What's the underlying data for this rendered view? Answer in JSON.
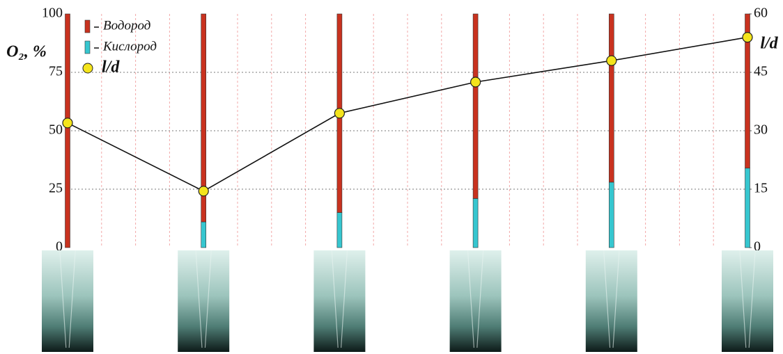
{
  "chart_data": {
    "type": "bar",
    "stacked": true,
    "categories": [
      null,
      null,
      null,
      null,
      null,
      null
    ],
    "series": [
      {
        "name": "Кислород",
        "color": "#36c6cf",
        "values": [
          0,
          11,
          15,
          21,
          28,
          34
        ]
      },
      {
        "name": "Водород",
        "color": "#c8321f",
        "values": [
          100,
          89,
          85,
          79,
          72,
          66
        ]
      },
      {
        "name": "l/d",
        "type": "line",
        "axis": "y2",
        "color": "#f4e41c",
        "values": [
          32,
          14.5,
          34.5,
          42.5,
          48,
          54
        ]
      }
    ],
    "y_label": "O₂, %",
    "y2_label": "l/d",
    "ylim": [
      0,
      100
    ],
    "yticks": [
      0,
      25,
      50,
      75,
      100
    ],
    "y2lim": [
      0,
      60
    ],
    "y2ticks": [
      0,
      15,
      30,
      45,
      60
    ],
    "grid": true
  }
}
